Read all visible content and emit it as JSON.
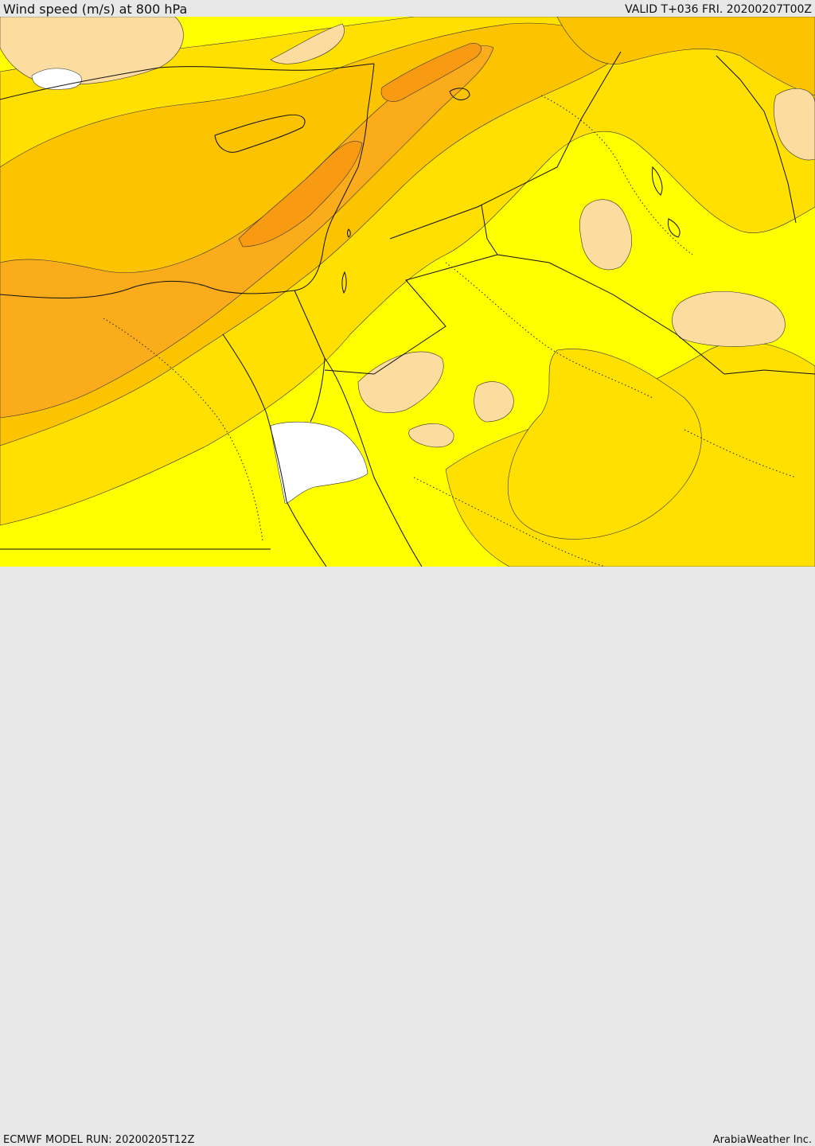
{
  "header": {
    "title": "Wind speed (m/s) at 800 hPa",
    "valid_time": "VALID T+036 FRI. 20200207T00Z"
  },
  "footer": {
    "model_run": "ECMWF MODEL RUN: 20200205T12Z",
    "credit": "ArabiaWeather Inc."
  },
  "palette": {
    "calm_white": "#ffffff",
    "light_peach": "#fddca0",
    "yellow": "#ffff00",
    "gold": "#ffe000",
    "amber": "#fbc300",
    "orange": "#fbac1a",
    "dark_orange": "#f99b12",
    "land_border": "#111111",
    "contour": "#333333"
  }
}
